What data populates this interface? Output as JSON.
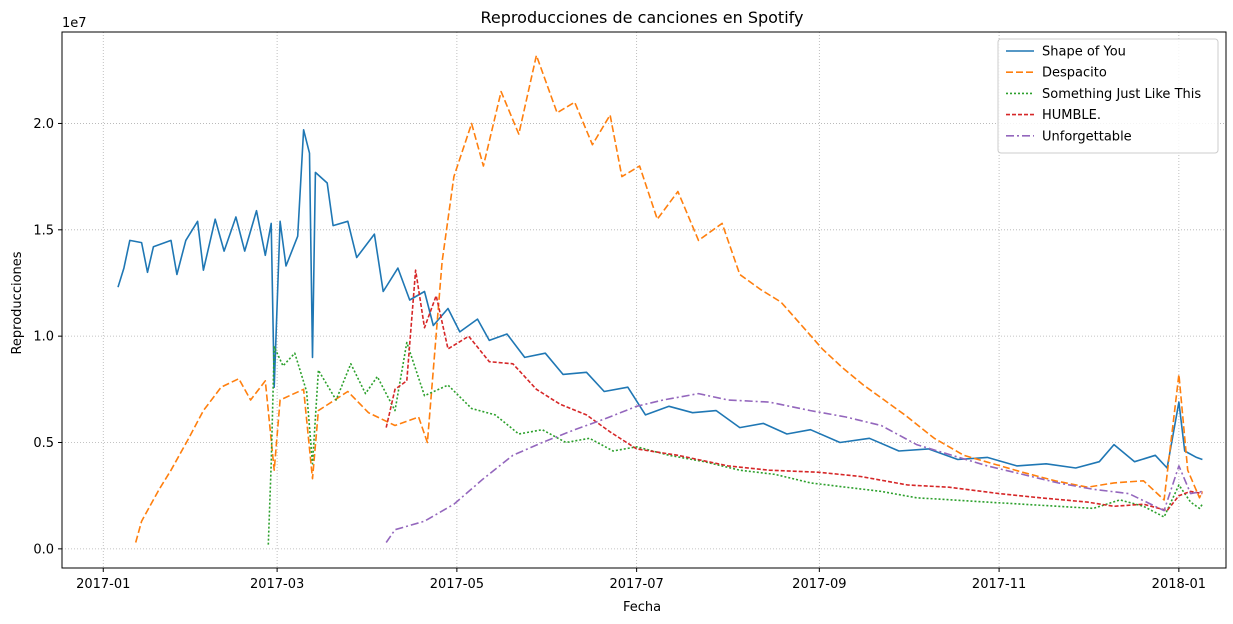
{
  "chart_data": {
    "type": "line",
    "title": "Reproducciones de canciones en Spotify",
    "xlabel": "Fecha",
    "ylabel": "Reproducciones",
    "y_offset_label": "1e7",
    "y_scale_factor": 10000000,
    "xlim": [
      "2016-12-18",
      "2018-01-17"
    ],
    "ylim": [
      -900000,
      24300000
    ],
    "x_ticks": [
      {
        "date": "2017-01-01",
        "label": "2017-01"
      },
      {
        "date": "2017-03-01",
        "label": "2017-03"
      },
      {
        "date": "2017-05-01",
        "label": "2017-05"
      },
      {
        "date": "2017-07-01",
        "label": "2017-07"
      },
      {
        "date": "2017-09-01",
        "label": "2017-09"
      },
      {
        "date": "2017-11-01",
        "label": "2017-11"
      },
      {
        "date": "2018-01-01",
        "label": "2018-01"
      }
    ],
    "y_ticks": [
      {
        "value": 0,
        "label": "0.0"
      },
      {
        "value": 5000000,
        "label": "0.5"
      },
      {
        "value": 10000000,
        "label": "1.0"
      },
      {
        "value": 15000000,
        "label": "1.5"
      },
      {
        "value": 20000000,
        "label": "2.0"
      }
    ],
    "grid": true,
    "legend_position": "top-right",
    "series": [
      {
        "name": "Shape of You",
        "color": "#1f77b4",
        "dash": "solid",
        "points": [
          [
            "2017-01-06",
            12300000
          ],
          [
            "2017-01-08",
            13200000
          ],
          [
            "2017-01-10",
            14500000
          ],
          [
            "2017-01-14",
            14400000
          ],
          [
            "2017-01-16",
            13000000
          ],
          [
            "2017-01-18",
            14200000
          ],
          [
            "2017-01-24",
            14500000
          ],
          [
            "2017-01-26",
            12900000
          ],
          [
            "2017-01-29",
            14500000
          ],
          [
            "2017-02-02",
            15400000
          ],
          [
            "2017-02-04",
            13100000
          ],
          [
            "2017-02-08",
            15500000
          ],
          [
            "2017-02-11",
            14000000
          ],
          [
            "2017-02-15",
            15600000
          ],
          [
            "2017-02-18",
            14000000
          ],
          [
            "2017-02-22",
            15900000
          ],
          [
            "2017-02-25",
            13800000
          ],
          [
            "2017-02-27",
            15300000
          ],
          [
            "2017-02-28",
            7600000
          ],
          [
            "2017-03-02",
            15400000
          ],
          [
            "2017-03-04",
            13300000
          ],
          [
            "2017-03-08",
            14700000
          ],
          [
            "2017-03-10",
            19700000
          ],
          [
            "2017-03-12",
            18600000
          ],
          [
            "2017-03-13",
            9000000
          ],
          [
            "2017-03-14",
            17700000
          ],
          [
            "2017-03-18",
            17200000
          ],
          [
            "2017-03-20",
            15200000
          ],
          [
            "2017-03-25",
            15400000
          ],
          [
            "2017-03-28",
            13700000
          ],
          [
            "2017-04-03",
            14800000
          ],
          [
            "2017-04-06",
            12100000
          ],
          [
            "2017-04-11",
            13200000
          ],
          [
            "2017-04-15",
            11700000
          ],
          [
            "2017-04-20",
            12100000
          ],
          [
            "2017-04-23",
            10500000
          ],
          [
            "2017-04-28",
            11300000
          ],
          [
            "2017-05-02",
            10200000
          ],
          [
            "2017-05-08",
            10800000
          ],
          [
            "2017-05-12",
            9800000
          ],
          [
            "2017-05-18",
            10100000
          ],
          [
            "2017-05-24",
            9000000
          ],
          [
            "2017-05-31",
            9200000
          ],
          [
            "2017-06-06",
            8200000
          ],
          [
            "2017-06-14",
            8300000
          ],
          [
            "2017-06-20",
            7400000
          ],
          [
            "2017-06-28",
            7600000
          ],
          [
            "2017-07-04",
            6300000
          ],
          [
            "2017-07-12",
            6700000
          ],
          [
            "2017-07-20",
            6400000
          ],
          [
            "2017-07-28",
            6500000
          ],
          [
            "2017-08-05",
            5700000
          ],
          [
            "2017-08-13",
            5900000
          ],
          [
            "2017-08-21",
            5400000
          ],
          [
            "2017-08-29",
            5600000
          ],
          [
            "2017-09-08",
            5000000
          ],
          [
            "2017-09-18",
            5200000
          ],
          [
            "2017-09-28",
            4600000
          ],
          [
            "2017-10-08",
            4700000
          ],
          [
            "2017-10-18",
            4200000
          ],
          [
            "2017-10-28",
            4300000
          ],
          [
            "2017-11-07",
            3900000
          ],
          [
            "2017-11-17",
            4000000
          ],
          [
            "2017-11-27",
            3800000
          ],
          [
            "2017-12-05",
            4100000
          ],
          [
            "2017-12-10",
            4900000
          ],
          [
            "2017-12-17",
            4100000
          ],
          [
            "2017-12-24",
            4400000
          ],
          [
            "2017-12-28",
            3800000
          ],
          [
            "2018-01-01",
            6900000
          ],
          [
            "2018-01-03",
            4600000
          ],
          [
            "2018-01-07",
            4300000
          ],
          [
            "2018-01-09",
            4200000
          ]
        ]
      },
      {
        "name": "Despacito",
        "color": "#ff7f0e",
        "dash": "7,3",
        "points": [
          [
            "2017-01-12",
            300000
          ],
          [
            "2017-01-14",
            1300000
          ],
          [
            "2017-01-20",
            2800000
          ],
          [
            "2017-01-24",
            3700000
          ],
          [
            "2017-01-30",
            5200000
          ],
          [
            "2017-02-04",
            6500000
          ],
          [
            "2017-02-10",
            7600000
          ],
          [
            "2017-02-16",
            8000000
          ],
          [
            "2017-02-20",
            7000000
          ],
          [
            "2017-02-25",
            7900000
          ],
          [
            "2017-02-28",
            3700000
          ],
          [
            "2017-03-02",
            7000000
          ],
          [
            "2017-03-10",
            7500000
          ],
          [
            "2017-03-13",
            3300000
          ],
          [
            "2017-03-15",
            6500000
          ],
          [
            "2017-03-25",
            7400000
          ],
          [
            "2017-04-01",
            6400000
          ],
          [
            "2017-04-10",
            5800000
          ],
          [
            "2017-04-18",
            6200000
          ],
          [
            "2017-04-21",
            5000000
          ],
          [
            "2017-04-26",
            13500000
          ],
          [
            "2017-04-30",
            17500000
          ],
          [
            "2017-05-06",
            20000000
          ],
          [
            "2017-05-10",
            18000000
          ],
          [
            "2017-05-16",
            21500000
          ],
          [
            "2017-05-22",
            19500000
          ],
          [
            "2017-05-28",
            23200000
          ],
          [
            "2017-06-04",
            20500000
          ],
          [
            "2017-06-10",
            21000000
          ],
          [
            "2017-06-16",
            19000000
          ],
          [
            "2017-06-22",
            20400000
          ],
          [
            "2017-06-26",
            17500000
          ],
          [
            "2017-07-02",
            18000000
          ],
          [
            "2017-07-08",
            15500000
          ],
          [
            "2017-07-15",
            16800000
          ],
          [
            "2017-07-22",
            14500000
          ],
          [
            "2017-07-30",
            15300000
          ],
          [
            "2017-08-05",
            12900000
          ],
          [
            "2017-08-12",
            12200000
          ],
          [
            "2017-08-19",
            11600000
          ],
          [
            "2017-08-26",
            10500000
          ],
          [
            "2017-09-02",
            9400000
          ],
          [
            "2017-09-09",
            8500000
          ],
          [
            "2017-09-16",
            7700000
          ],
          [
            "2017-09-23",
            7000000
          ],
          [
            "2017-09-30",
            6300000
          ],
          [
            "2017-10-10",
            5200000
          ],
          [
            "2017-10-20",
            4400000
          ],
          [
            "2017-10-30",
            4000000
          ],
          [
            "2017-11-09",
            3600000
          ],
          [
            "2017-11-20",
            3200000
          ],
          [
            "2017-12-01",
            2900000
          ],
          [
            "2017-12-10",
            3100000
          ],
          [
            "2017-12-20",
            3200000
          ],
          [
            "2017-12-27",
            2300000
          ],
          [
            "2018-01-01",
            8200000
          ],
          [
            "2018-01-04",
            3700000
          ],
          [
            "2018-01-08",
            2400000
          ],
          [
            "2018-01-09",
            2700000
          ]
        ]
      },
      {
        "name": "Something Just Like This",
        "color": "#2ca02c",
        "dash": "2,2",
        "points": [
          [
            "2017-02-26",
            200000
          ],
          [
            "2017-02-27",
            4000000
          ],
          [
            "2017-02-28",
            9500000
          ],
          [
            "2017-03-03",
            8600000
          ],
          [
            "2017-03-07",
            9200000
          ],
          [
            "2017-03-11",
            7400000
          ],
          [
            "2017-03-13",
            4000000
          ],
          [
            "2017-03-15",
            8400000
          ],
          [
            "2017-03-21",
            7000000
          ],
          [
            "2017-03-26",
            8700000
          ],
          [
            "2017-03-31",
            7300000
          ],
          [
            "2017-04-04",
            8100000
          ],
          [
            "2017-04-10",
            6500000
          ],
          [
            "2017-04-14",
            9700000
          ],
          [
            "2017-04-20",
            7200000
          ],
          [
            "2017-04-28",
            7700000
          ],
          [
            "2017-05-06",
            6600000
          ],
          [
            "2017-05-14",
            6300000
          ],
          [
            "2017-05-22",
            5400000
          ],
          [
            "2017-05-30",
            5600000
          ],
          [
            "2017-06-07",
            5000000
          ],
          [
            "2017-06-15",
            5200000
          ],
          [
            "2017-06-23",
            4600000
          ],
          [
            "2017-07-01",
            4800000
          ],
          [
            "2017-07-12",
            4400000
          ],
          [
            "2017-07-24",
            4100000
          ],
          [
            "2017-08-05",
            3700000
          ],
          [
            "2017-08-17",
            3500000
          ],
          [
            "2017-08-29",
            3100000
          ],
          [
            "2017-09-10",
            2900000
          ],
          [
            "2017-09-22",
            2700000
          ],
          [
            "2017-10-04",
            2400000
          ],
          [
            "2017-10-16",
            2300000
          ],
          [
            "2017-10-28",
            2200000
          ],
          [
            "2017-11-09",
            2100000
          ],
          [
            "2017-11-21",
            2000000
          ],
          [
            "2017-12-03",
            1900000
          ],
          [
            "2017-12-12",
            2300000
          ],
          [
            "2017-12-20",
            2000000
          ],
          [
            "2017-12-27",
            1500000
          ],
          [
            "2018-01-01",
            3000000
          ],
          [
            "2018-01-05",
            2200000
          ],
          [
            "2018-01-08",
            1900000
          ],
          [
            "2018-01-09",
            2100000
          ]
        ]
      },
      {
        "name": "HUMBLE.",
        "color": "#d62728",
        "dash": "4,2",
        "points": [
          [
            "2017-04-07",
            5700000
          ],
          [
            "2017-04-10",
            7500000
          ],
          [
            "2017-04-14",
            7900000
          ],
          [
            "2017-04-17",
            13100000
          ],
          [
            "2017-04-20",
            10400000
          ],
          [
            "2017-04-24",
            11900000
          ],
          [
            "2017-04-28",
            9400000
          ],
          [
            "2017-05-05",
            10000000
          ],
          [
            "2017-05-12",
            8800000
          ],
          [
            "2017-05-20",
            8700000
          ],
          [
            "2017-05-28",
            7500000
          ],
          [
            "2017-06-05",
            6800000
          ],
          [
            "2017-06-14",
            6300000
          ],
          [
            "2017-06-22",
            5500000
          ],
          [
            "2017-07-01",
            4700000
          ],
          [
            "2017-07-15",
            4400000
          ],
          [
            "2017-08-01",
            3900000
          ],
          [
            "2017-08-15",
            3700000
          ],
          [
            "2017-09-01",
            3600000
          ],
          [
            "2017-09-15",
            3400000
          ],
          [
            "2017-10-01",
            3000000
          ],
          [
            "2017-10-15",
            2900000
          ],
          [
            "2017-11-01",
            2600000
          ],
          [
            "2017-11-15",
            2400000
          ],
          [
            "2017-12-01",
            2200000
          ],
          [
            "2017-12-10",
            2000000
          ],
          [
            "2017-12-20",
            2100000
          ],
          [
            "2017-12-28",
            1800000
          ],
          [
            "2018-01-01",
            2500000
          ],
          [
            "2018-01-05",
            2700000
          ],
          [
            "2018-01-09",
            2600000
          ]
        ]
      },
      {
        "name": "Unforgettable",
        "color": "#9467bd",
        "dash": "8,3,2,3",
        "points": [
          [
            "2017-04-07",
            300000
          ],
          [
            "2017-04-10",
            900000
          ],
          [
            "2017-04-20",
            1300000
          ],
          [
            "2017-04-30",
            2100000
          ],
          [
            "2017-05-10",
            3300000
          ],
          [
            "2017-05-20",
            4400000
          ],
          [
            "2017-05-30",
            5000000
          ],
          [
            "2017-06-10",
            5600000
          ],
          [
            "2017-06-20",
            6100000
          ],
          [
            "2017-07-01",
            6700000
          ],
          [
            "2017-07-10",
            7000000
          ],
          [
            "2017-07-22",
            7300000
          ],
          [
            "2017-08-01",
            7000000
          ],
          [
            "2017-08-15",
            6900000
          ],
          [
            "2017-08-29",
            6500000
          ],
          [
            "2017-09-10",
            6200000
          ],
          [
            "2017-09-22",
            5800000
          ],
          [
            "2017-10-04",
            4900000
          ],
          [
            "2017-10-16",
            4400000
          ],
          [
            "2017-10-28",
            3900000
          ],
          [
            "2017-11-09",
            3500000
          ],
          [
            "2017-11-21",
            3100000
          ],
          [
            "2017-12-03",
            2800000
          ],
          [
            "2017-12-15",
            2600000
          ],
          [
            "2017-12-27",
            1800000
          ],
          [
            "2018-01-01",
            3900000
          ],
          [
            "2018-01-05",
            2600000
          ],
          [
            "2018-01-09",
            2700000
          ]
        ]
      }
    ]
  }
}
